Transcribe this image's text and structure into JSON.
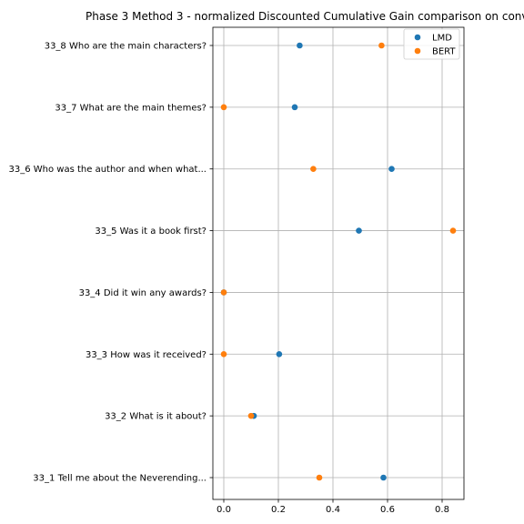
{
  "chart_data": {
    "type": "scatter",
    "title": "Phase 3 Method 3 - normalized Discounted Cumulative Gain comparison on conv",
    "xlabel": "",
    "ylabel": "",
    "xlim": [
      -0.04,
      0.88
    ],
    "xticks": [
      0.0,
      0.2,
      0.4,
      0.6,
      0.8
    ],
    "xtick_labels": [
      "0.0",
      "0.2",
      "0.4",
      "0.6",
      "0.8"
    ],
    "grid": true,
    "legend_position": "top-right",
    "categories": [
      "33_1 Tell me about the Neverending...",
      "33_2 What is it about?",
      "33_3 How was it received?",
      "33_4 Did it win any awards?",
      "33_5 Was it a book first?",
      "33_6 Who was the author and when what...",
      "33_7 What are the main themes?",
      "33_8 Who are the main characters?"
    ],
    "series": [
      {
        "name": "LMD",
        "color": "#1f77b4",
        "values": [
          0.585,
          0.11,
          0.203,
          0.0,
          0.495,
          0.615,
          0.26,
          0.278
        ]
      },
      {
        "name": "BERT",
        "color": "#ff7f0e",
        "values": [
          0.35,
          0.1,
          0.0,
          0.0,
          0.84,
          0.328,
          0.0,
          0.578
        ]
      }
    ]
  }
}
